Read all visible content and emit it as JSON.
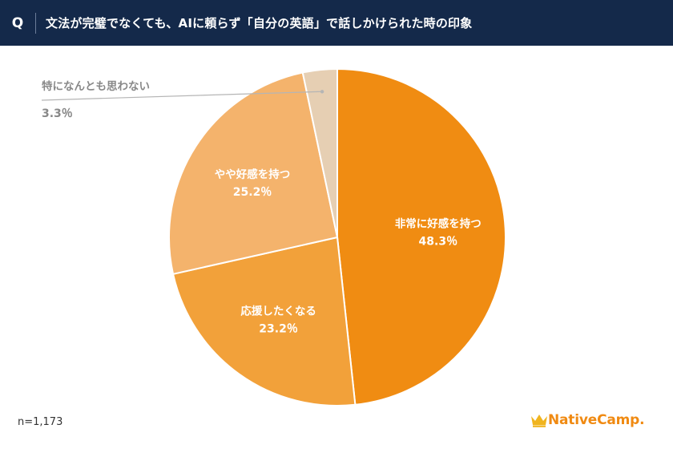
{
  "header": {
    "q_label": "Q",
    "question": "文法が完璧でなくても、AIに頼らず「自分の英語」で話しかけられた時の印象"
  },
  "chart_data": {
    "type": "pie",
    "title": "文法が完璧でなくても、AIに頼らず「自分の英語」で話しかけられた時の印象",
    "start": "12 o'clock",
    "direction": "clockwise",
    "slices": [
      {
        "label": "非常に好感を持つ",
        "value": 48.3,
        "value_label": "48.3％",
        "color": "#f08c12",
        "label_color": "#ffffff"
      },
      {
        "label": "応援したくなる",
        "value": 23.2,
        "value_label": "23.2％",
        "color": "#f2a13a",
        "label_color": "#ffffff"
      },
      {
        "label": "やや好感を持つ",
        "value": 25.2,
        "value_label": "25.2％",
        "color": "#f4b36c",
        "label_color": "#ffffff"
      },
      {
        "label": "特になんとも思わない",
        "value": 3.3,
        "value_label": "3.3％",
        "color": "#e6cfb3",
        "label_color": "#888888"
      }
    ]
  },
  "footer": {
    "sample": "n=1,173",
    "logo_text": "NativeCamp.",
    "logo_color": "#f08a12",
    "logo_icon": "crown-icon"
  }
}
